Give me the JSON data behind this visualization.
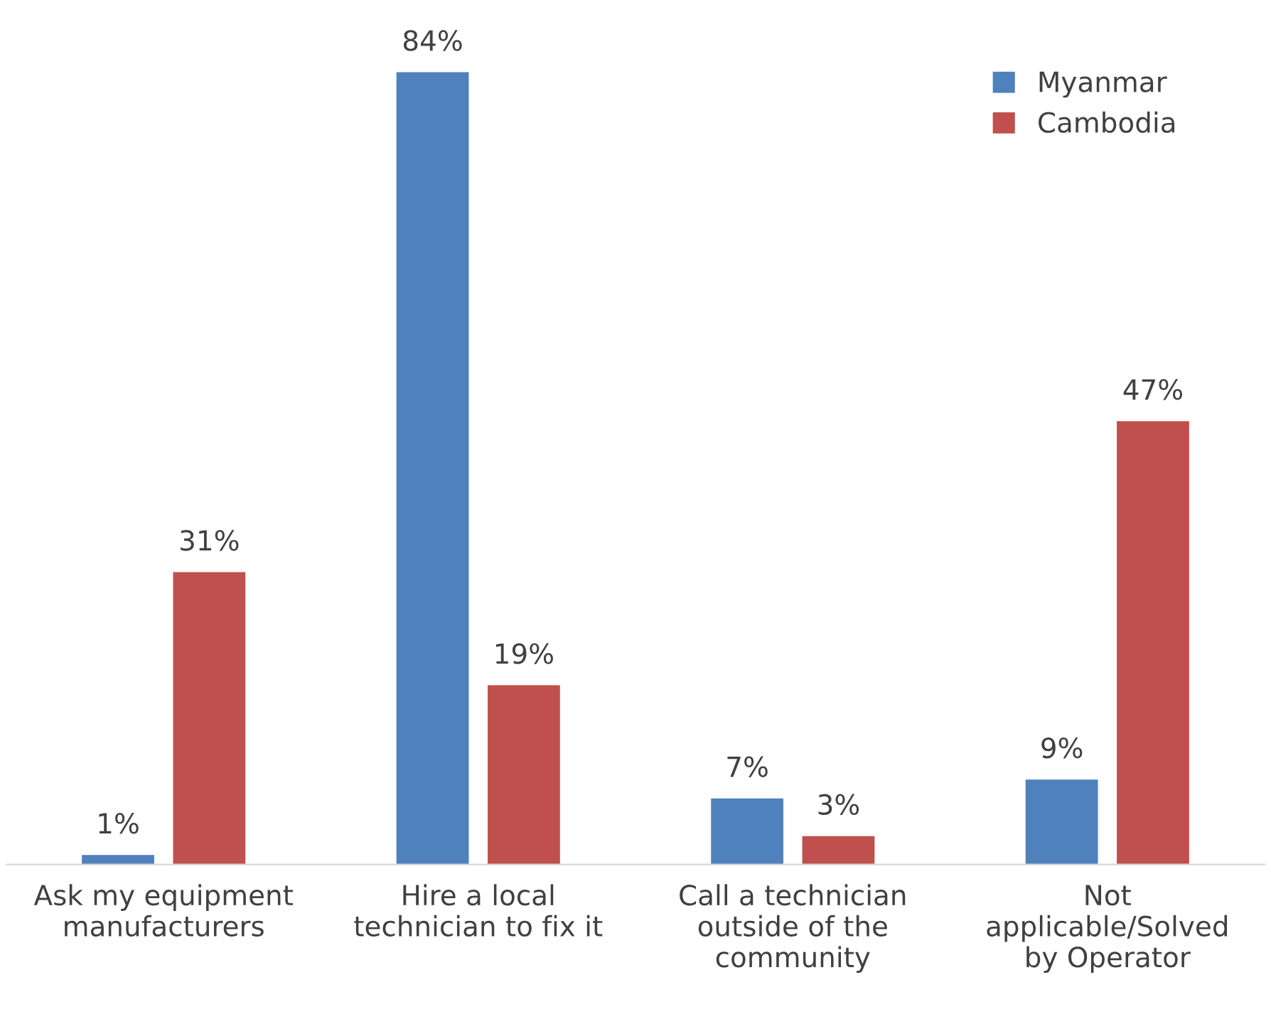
{
  "chart_data": {
    "type": "bar",
    "categories": [
      "Ask my equipment\nmanufacturers",
      "Hire a local\ntechnician to fix it",
      "Call a technician\noutside of the\ncommunity",
      "Not\napplicable/Solved\nby Operator"
    ],
    "series": [
      {
        "name": "Myanmar",
        "color": "#4f81bd",
        "values": [
          1,
          84,
          7,
          9
        ],
        "value_labels": [
          "1%",
          "84%",
          "7%",
          "9%"
        ]
      },
      {
        "name": "Cambodia",
        "color": "#c0504d",
        "values": [
          31,
          19,
          3,
          47
        ],
        "value_labels": [
          "31%",
          "19%",
          "3%",
          "47%"
        ]
      }
    ],
    "legend": "top right",
    "grid": false,
    "tick_labels": "x"
  }
}
